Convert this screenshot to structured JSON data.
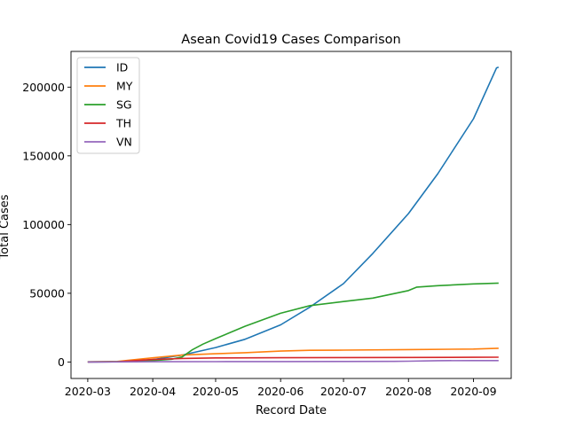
{
  "chart_data": {
    "type": "line",
    "title": "Asean Covid19 Cases Comparison",
    "xlabel": "Record Date",
    "ylabel": "Total Cases",
    "x_axis": {
      "type": "date",
      "range": [
        "2020-02-22",
        "2020-09-19"
      ],
      "ticks": [
        "2020-03-01",
        "2020-04-01",
        "2020-05-01",
        "2020-06-01",
        "2020-07-01",
        "2020-08-01",
        "2020-09-01"
      ],
      "tick_labels": [
        "2020-03",
        "2020-04",
        "2020-05",
        "2020-06",
        "2020-07",
        "2020-08",
        "2020-09"
      ]
    },
    "y_axis": {
      "range": [
        -12000,
        226000
      ],
      "ticks": [
        0,
        50000,
        100000,
        150000,
        200000
      ],
      "tick_labels": [
        "0",
        "50000",
        "100000",
        "150000",
        "200000"
      ]
    },
    "grid": false,
    "legend_position": "top-left",
    "series": [
      {
        "name": "ID",
        "color": "#1f77b4",
        "points": [
          [
            "2020-03-01",
            0
          ],
          [
            "2020-03-15",
            100
          ],
          [
            "2020-04-01",
            1700
          ],
          [
            "2020-04-15",
            5000
          ],
          [
            "2020-05-01",
            10500
          ],
          [
            "2020-05-15",
            16500
          ],
          [
            "2020-06-01",
            27000
          ],
          [
            "2020-06-15",
            40000
          ],
          [
            "2020-07-01",
            57000
          ],
          [
            "2020-07-15",
            79000
          ],
          [
            "2020-08-01",
            108000
          ],
          [
            "2020-08-15",
            137000
          ],
          [
            "2020-09-01",
            177000
          ],
          [
            "2020-09-12",
            214000
          ],
          [
            "2020-09-13",
            214500
          ]
        ]
      },
      {
        "name": "MY",
        "color": "#ff7f0e",
        "points": [
          [
            "2020-03-01",
            30
          ],
          [
            "2020-03-15",
            400
          ],
          [
            "2020-04-01",
            3000
          ],
          [
            "2020-04-15",
            5000
          ],
          [
            "2020-05-01",
            6000
          ],
          [
            "2020-05-15",
            6800
          ],
          [
            "2020-06-01",
            7900
          ],
          [
            "2020-06-15",
            8500
          ],
          [
            "2020-07-01",
            8650
          ],
          [
            "2020-08-01",
            9000
          ],
          [
            "2020-09-01",
            9400
          ],
          [
            "2020-09-13",
            10000
          ]
        ]
      },
      {
        "name": "SG",
        "color": "#2ca02c",
        "points": [
          [
            "2020-03-01",
            100
          ],
          [
            "2020-03-15",
            230
          ],
          [
            "2020-04-01",
            1000
          ],
          [
            "2020-04-10",
            2000
          ],
          [
            "2020-04-15",
            3700
          ],
          [
            "2020-04-20",
            9000
          ],
          [
            "2020-04-25",
            13000
          ],
          [
            "2020-05-01",
            17000
          ],
          [
            "2020-05-15",
            26000
          ],
          [
            "2020-06-01",
            35500
          ],
          [
            "2020-06-15",
            41000
          ],
          [
            "2020-07-01",
            44000
          ],
          [
            "2020-07-15",
            46500
          ],
          [
            "2020-08-01",
            52000
          ],
          [
            "2020-08-05",
            54500
          ],
          [
            "2020-08-15",
            55500
          ],
          [
            "2020-09-01",
            56800
          ],
          [
            "2020-09-13",
            57400
          ]
        ]
      },
      {
        "name": "TH",
        "color": "#d62728",
        "points": [
          [
            "2020-03-01",
            40
          ],
          [
            "2020-03-15",
            150
          ],
          [
            "2020-04-01",
            1800
          ],
          [
            "2020-04-15",
            2600
          ],
          [
            "2020-05-01",
            2950
          ],
          [
            "2020-06-01",
            3100
          ],
          [
            "2020-07-01",
            3200
          ],
          [
            "2020-08-01",
            3300
          ],
          [
            "2020-09-01",
            3400
          ],
          [
            "2020-09-13",
            3480
          ]
        ]
      },
      {
        "name": "VN",
        "color": "#9467bd",
        "points": [
          [
            "2020-03-01",
            16
          ],
          [
            "2020-03-15",
            60
          ],
          [
            "2020-04-01",
            220
          ],
          [
            "2020-05-01",
            270
          ],
          [
            "2020-06-01",
            330
          ],
          [
            "2020-07-01",
            360
          ],
          [
            "2020-07-25",
            420
          ],
          [
            "2020-08-01",
            600
          ],
          [
            "2020-08-15",
            950
          ],
          [
            "2020-09-01",
            1050
          ],
          [
            "2020-09-13",
            1060
          ]
        ]
      }
    ]
  }
}
